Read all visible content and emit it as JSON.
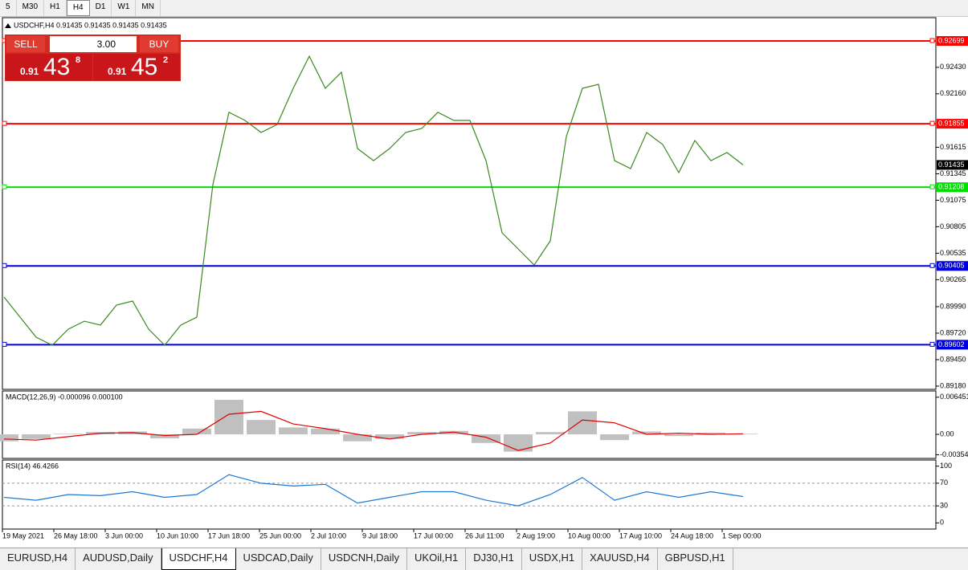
{
  "toolbar": {
    "timeframes": [
      "5",
      "M30",
      "H1",
      "H4",
      "D1",
      "W1",
      "MN"
    ],
    "active": 3
  },
  "trade_panel": {
    "sell": "SELL",
    "buy": "BUY",
    "volume": "3.00",
    "bid": {
      "big_figure": "0.91",
      "pips": "43",
      "fraction": "8"
    },
    "ask": {
      "big_figure": "0.91",
      "pips": "45",
      "fraction": "2"
    }
  },
  "chart_data": [
    {
      "type": "line",
      "title": "USDCHF,H4 0.91435 0.91435 0.91435 0.91435",
      "color": "#3a8a20",
      "values": [
        0.90088,
        0.89883,
        0.89679,
        0.89597,
        0.89761,
        0.89842,
        0.89802,
        0.90006,
        0.90047,
        0.89761,
        0.89597,
        0.89802,
        0.89883,
        0.91234,
        0.91971,
        0.91889,
        0.91766,
        0.91848,
        0.92216,
        0.92543,
        0.92216,
        0.9238,
        0.91602,
        0.91479,
        0.91602,
        0.91766,
        0.91807,
        0.91971,
        0.91889,
        0.91889,
        0.91479,
        0.90743,
        0.90579,
        0.90415,
        0.90661,
        0.91725,
        0.92216,
        0.92257,
        0.91479,
        0.91398,
        0.91766,
        0.91643,
        0.91357,
        0.91684,
        0.91479,
        0.91561,
        0.91435
      ],
      "ylim": [
        0.89155,
        0.9292
      ],
      "yticks": [
        {
          "value": 0.9243,
          "label": "0.92430"
        },
        {
          "value": 0.9216,
          "label": "0.92160"
        },
        {
          "value": 0.91615,
          "label": "0.91615"
        },
        {
          "value": 0.91345,
          "label": "0.91345"
        },
        {
          "value": 0.91075,
          "label": "0.91075"
        },
        {
          "value": 0.90805,
          "label": "0.90805"
        },
        {
          "value": 0.90535,
          "label": "0.90535"
        },
        {
          "value": 0.90265,
          "label": "0.90265"
        },
        {
          "value": 0.8999,
          "label": "0.89990"
        },
        {
          "value": 0.8972,
          "label": "0.89720"
        },
        {
          "value": 0.8945,
          "label": "0.89450"
        },
        {
          "value": 0.8918,
          "label": "0.89180"
        }
      ],
      "hlines": [
        {
          "value": 0.92699,
          "label": "0.92699",
          "color": "#ff0000"
        },
        {
          "value": 0.91855,
          "label": "0.91855",
          "color": "#ff0000"
        },
        {
          "value": 0.91208,
          "label": "0.91208",
          "color": "#00e000"
        },
        {
          "value": 0.90405,
          "label": "0.90405",
          "color": "#0000dd"
        },
        {
          "value": 0.89602,
          "label": "0.89602",
          "color": "#0000dd"
        }
      ],
      "current": {
        "value": 0.91435,
        "label": "0.91435"
      },
      "xlabels": [
        "19 May 2021",
        "26 May 18:00",
        "3 Jun 00:00",
        "10 Jun 10:00",
        "17 Jun 18:00",
        "25 Jun 00:00",
        "2 Jul 10:00",
        "9 Jul 18:00",
        "17 Jul 00:00",
        "26 Jul 11:00",
        "2 Aug 19:00",
        "10 Aug 00:00",
        "17 Aug 10:00",
        "24 Aug 18:00",
        "1 Sep 00:00"
      ]
    },
    {
      "type": "macd",
      "title": "MACD(12,26,9) -0.000096 0.000100",
      "histogram": {
        "color": "#c0c0c0",
        "values": [
          -0.0012,
          -0.0008,
          0.0001,
          0.0004,
          0.0005,
          -0.0007,
          0.001,
          0.006,
          0.0025,
          0.0012,
          0.001,
          -0.0012,
          -0.0008,
          0.0004,
          0.0006,
          -0.0015,
          -0.003,
          0.0004,
          0.004,
          -0.001,
          0.0005,
          -0.0003,
          0.0003,
          0.0001
        ]
      },
      "signal": {
        "color": "#e00000",
        "values": [
          -0.0008,
          -0.001,
          -0.0004,
          0.0002,
          0.0003,
          -0.0002,
          0.0,
          0.0035,
          0.004,
          0.0018,
          0.001,
          0.0,
          -0.0008,
          0.0,
          0.0004,
          -0.0005,
          -0.0028,
          -0.0015,
          0.0025,
          0.002,
          0.0,
          0.0002,
          0.0,
          0.0001
        ]
      },
      "ylim": [
        -0.0039,
        0.00726
      ],
      "yticks": [
        0.006451,
        {
          "value": 0,
          "label": "0.00"
        },
        -0.00354
      ]
    },
    {
      "type": "rsi",
      "title": "RSI(14) 46.4266",
      "color": "#1e78d2",
      "values": [
        45,
        40,
        50,
        48,
        55,
        45,
        50,
        85,
        70,
        65,
        68,
        35,
        45,
        55,
        55,
        40,
        30,
        50,
        80,
        40,
        55,
        45,
        55,
        46.4266
      ],
      "ylim": [
        -8,
        108
      ],
      "yticks": [
        100,
        70,
        30,
        0
      ],
      "levels": [
        70,
        30
      ]
    }
  ],
  "tabs": [
    "EURUSD,H4",
    "AUDUSD,Daily",
    "USDCHF,H4",
    "USDCAD,Daily",
    "USDCNH,Daily",
    "UKOil,H1",
    "DJ30,H1",
    "USDX,H1",
    "XAUUSD,H4",
    "GBPUSD,H1"
  ],
  "active_tab": 2
}
